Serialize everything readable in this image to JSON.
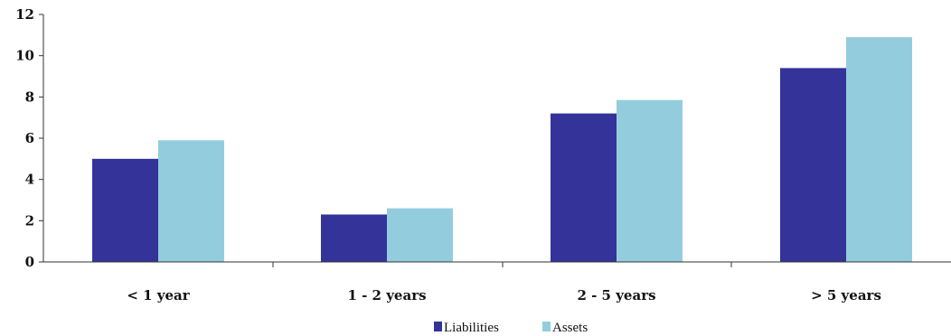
{
  "chart_data": {
    "type": "bar",
    "categories": [
      "< 1 year",
      "1 - 2 years",
      "2 - 5 years",
      "> 5 years"
    ],
    "series": [
      {
        "name": "Liabilities",
        "values": [
          5.0,
          2.3,
          7.2,
          9.4
        ],
        "color": "#333399"
      },
      {
        "name": "Assets",
        "values": [
          5.9,
          2.6,
          7.85,
          10.9
        ],
        "color": "#93CDDD"
      }
    ],
    "title": "",
    "xlabel": "",
    "ylabel": "",
    "ylim": [
      0,
      12
    ],
    "yticks": [
      0,
      2,
      4,
      6,
      8,
      10,
      12
    ],
    "grid": false,
    "legend": "bottom-center"
  }
}
